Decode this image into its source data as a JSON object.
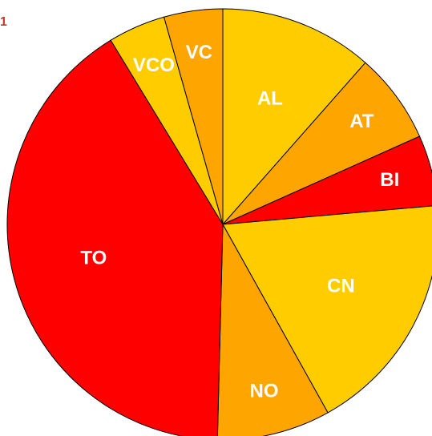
{
  "chart_data": {
    "type": "pie",
    "title": "1",
    "categories": [
      "AL",
      "AT",
      "BI",
      "CN",
      "NO",
      "TO",
      "VCO",
      "VC"
    ],
    "values": [
      11.5,
      6.8,
      5.3,
      18.3,
      8.5,
      40.9,
      4.3,
      4.4
    ],
    "colors": [
      "#ffcc00",
      "#ffa500",
      "#ff0000",
      "#ffcc00",
      "#ffa500",
      "#ff0000",
      "#ffcc00",
      "#ffa500"
    ]
  }
}
